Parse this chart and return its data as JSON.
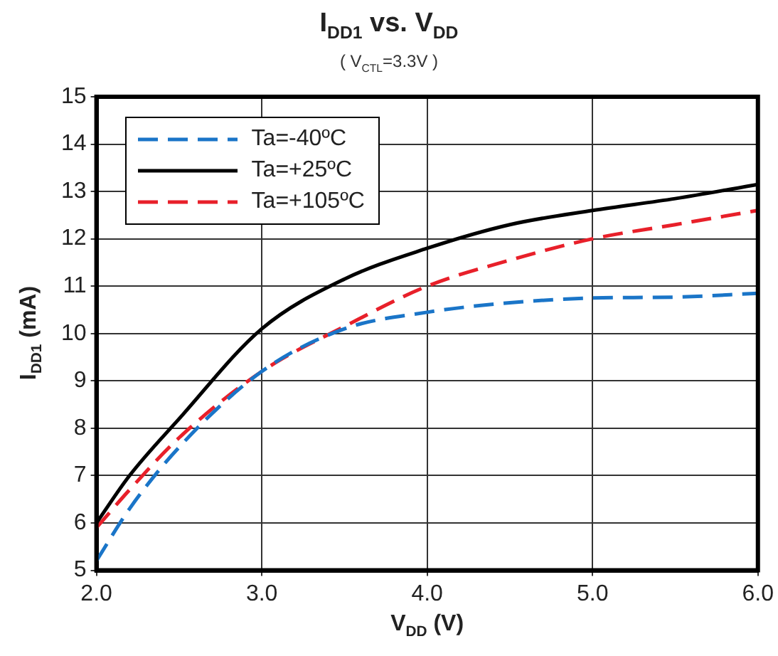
{
  "chart_data": {
    "type": "line",
    "title": "I$_{DD1}$ vs. V$_{DD}$",
    "subtitle": "( V$_{CTL}$=3.3V )",
    "xlabel": "V$_{DD}$ (V)",
    "ylabel": "I$_{DD1}$ (mA)",
    "x": [
      2.0,
      2.2,
      2.5,
      3.0,
      3.5,
      4.0,
      4.5,
      5.0,
      5.5,
      6.0
    ],
    "series": [
      {
        "name": "Ta=-40ºC",
        "color": "#1a75c8",
        "line_style": "dashed",
        "values": [
          5.2,
          6.3,
          7.6,
          9.2,
          10.1,
          10.45,
          10.65,
          10.75,
          10.77,
          10.85
        ]
      },
      {
        "name": "Ta=+25ºC",
        "color": "#000000",
        "line_style": "solid",
        "values": [
          6.0,
          7.0,
          8.2,
          10.1,
          11.15,
          11.8,
          12.3,
          12.6,
          12.85,
          13.15
        ]
      },
      {
        "name": "Ta=+105ºC",
        "color": "#e8202a",
        "line_style": "dashed",
        "values": [
          5.9,
          6.7,
          7.8,
          9.2,
          10.15,
          11.0,
          11.55,
          12.0,
          12.3,
          12.6
        ]
      }
    ],
    "xlim": [
      2.0,
      6.0
    ],
    "xticks": [
      {
        "value": 2,
        "label": "2.0"
      },
      {
        "value": 3,
        "label": "3.0"
      },
      {
        "value": 4,
        "label": "4.0"
      },
      {
        "value": 5,
        "label": "5.0"
      },
      {
        "value": 6,
        "label": "6.0"
      }
    ],
    "ylim": [
      5,
      15
    ],
    "yticks": [
      5,
      6,
      7,
      8,
      9,
      10,
      11,
      12,
      13,
      14,
      15
    ],
    "grid": true,
    "legend": "top left",
    "marker": "none"
  }
}
